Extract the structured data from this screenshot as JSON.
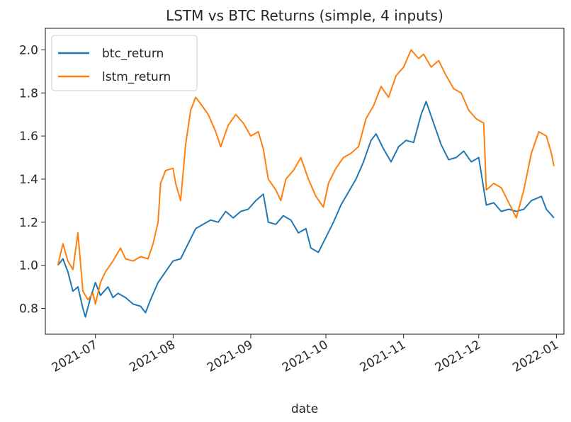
{
  "chart_data": {
    "type": "line",
    "title": "LSTM vs BTC Returns (simple, 4 inputs)",
    "xlabel": "date",
    "ylabel": "",
    "x_ticks": [
      "2021-07",
      "2021-08",
      "2021-09",
      "2021-10",
      "2021-11",
      "2021-12",
      "2022-01"
    ],
    "x_tick_dates": [
      "2021-07-01",
      "2021-08-01",
      "2021-09-01",
      "2021-10-01",
      "2021-11-01",
      "2021-12-01",
      "2022-01-01"
    ],
    "xlim": [
      "2021-06-11",
      "2022-01-04"
    ],
    "y_ticks": [
      "0.8",
      "1.0",
      "1.2",
      "1.4",
      "1.6",
      "1.8",
      "2.0"
    ],
    "ylim": [
      0.68,
      2.1
    ],
    "grid": false,
    "legend_position": "top-left",
    "series": [
      {
        "name": "btc_return",
        "color": "#1f77b4",
        "points": [
          [
            "2021-06-16",
            1.0
          ],
          [
            "2021-06-18",
            1.03
          ],
          [
            "2021-06-20",
            0.97
          ],
          [
            "2021-06-22",
            0.88
          ],
          [
            "2021-06-24",
            0.9
          ],
          [
            "2021-06-26",
            0.8
          ],
          [
            "2021-06-27",
            0.76
          ],
          [
            "2021-06-29",
            0.85
          ],
          [
            "2021-07-01",
            0.92
          ],
          [
            "2021-07-03",
            0.86
          ],
          [
            "2021-07-06",
            0.9
          ],
          [
            "2021-07-08",
            0.85
          ],
          [
            "2021-07-10",
            0.87
          ],
          [
            "2021-07-13",
            0.85
          ],
          [
            "2021-07-16",
            0.82
          ],
          [
            "2021-07-19",
            0.81
          ],
          [
            "2021-07-21",
            0.78
          ],
          [
            "2021-07-23",
            0.84
          ],
          [
            "2021-07-26",
            0.92
          ],
          [
            "2021-07-29",
            0.97
          ],
          [
            "2021-08-01",
            1.02
          ],
          [
            "2021-08-04",
            1.03
          ],
          [
            "2021-08-07",
            1.1
          ],
          [
            "2021-08-10",
            1.17
          ],
          [
            "2021-08-13",
            1.19
          ],
          [
            "2021-08-16",
            1.21
          ],
          [
            "2021-08-19",
            1.2
          ],
          [
            "2021-08-22",
            1.25
          ],
          [
            "2021-08-25",
            1.22
          ],
          [
            "2021-08-28",
            1.25
          ],
          [
            "2021-08-31",
            1.26
          ],
          [
            "2021-09-03",
            1.3
          ],
          [
            "2021-09-06",
            1.33
          ],
          [
            "2021-09-08",
            1.2
          ],
          [
            "2021-09-11",
            1.19
          ],
          [
            "2021-09-14",
            1.23
          ],
          [
            "2021-09-17",
            1.21
          ],
          [
            "2021-09-20",
            1.15
          ],
          [
            "2021-09-23",
            1.17
          ],
          [
            "2021-09-25",
            1.08
          ],
          [
            "2021-09-28",
            1.06
          ],
          [
            "2021-10-01",
            1.13
          ],
          [
            "2021-10-04",
            1.2
          ],
          [
            "2021-10-07",
            1.28
          ],
          [
            "2021-10-10",
            1.34
          ],
          [
            "2021-10-13",
            1.4
          ],
          [
            "2021-10-16",
            1.48
          ],
          [
            "2021-10-19",
            1.58
          ],
          [
            "2021-10-21",
            1.61
          ],
          [
            "2021-10-24",
            1.54
          ],
          [
            "2021-10-27",
            1.48
          ],
          [
            "2021-10-30",
            1.55
          ],
          [
            "2021-11-02",
            1.58
          ],
          [
            "2021-11-05",
            1.57
          ],
          [
            "2021-11-08",
            1.7
          ],
          [
            "2021-11-10",
            1.76
          ],
          [
            "2021-11-13",
            1.66
          ],
          [
            "2021-11-16",
            1.56
          ],
          [
            "2021-11-19",
            1.49
          ],
          [
            "2021-11-22",
            1.5
          ],
          [
            "2021-11-25",
            1.53
          ],
          [
            "2021-11-28",
            1.48
          ],
          [
            "2021-12-01",
            1.5
          ],
          [
            "2021-12-04",
            1.28
          ],
          [
            "2021-12-07",
            1.29
          ],
          [
            "2021-12-10",
            1.25
          ],
          [
            "2021-12-13",
            1.26
          ],
          [
            "2021-12-16",
            1.25
          ],
          [
            "2021-12-19",
            1.26
          ],
          [
            "2021-12-22",
            1.3
          ],
          [
            "2021-12-26",
            1.32
          ],
          [
            "2021-12-28",
            1.26
          ],
          [
            "2021-12-31",
            1.22
          ]
        ]
      },
      {
        "name": "lstm_return",
        "color": "#ff7f0e",
        "points": [
          [
            "2021-06-16",
            1.0
          ],
          [
            "2021-06-18",
            1.1
          ],
          [
            "2021-06-20",
            1.02
          ],
          [
            "2021-06-22",
            0.98
          ],
          [
            "2021-06-24",
            1.15
          ],
          [
            "2021-06-26",
            0.88
          ],
          [
            "2021-06-28",
            0.84
          ],
          [
            "2021-06-30",
            0.87
          ],
          [
            "2021-07-01",
            0.82
          ],
          [
            "2021-07-03",
            0.92
          ],
          [
            "2021-07-05",
            0.97
          ],
          [
            "2021-07-08",
            1.02
          ],
          [
            "2021-07-11",
            1.08
          ],
          [
            "2021-07-13",
            1.03
          ],
          [
            "2021-07-16",
            1.02
          ],
          [
            "2021-07-19",
            1.04
          ],
          [
            "2021-07-22",
            1.03
          ],
          [
            "2021-07-24",
            1.1
          ],
          [
            "2021-07-26",
            1.2
          ],
          [
            "2021-07-27",
            1.38
          ],
          [
            "2021-07-29",
            1.44
          ],
          [
            "2021-08-01",
            1.45
          ],
          [
            "2021-08-02",
            1.38
          ],
          [
            "2021-08-04",
            1.3
          ],
          [
            "2021-08-06",
            1.56
          ],
          [
            "2021-08-08",
            1.72
          ],
          [
            "2021-08-10",
            1.78
          ],
          [
            "2021-08-12",
            1.75
          ],
          [
            "2021-08-15",
            1.7
          ],
          [
            "2021-08-18",
            1.62
          ],
          [
            "2021-08-20",
            1.55
          ],
          [
            "2021-08-23",
            1.65
          ],
          [
            "2021-08-26",
            1.7
          ],
          [
            "2021-08-29",
            1.66
          ],
          [
            "2021-09-01",
            1.6
          ],
          [
            "2021-09-04",
            1.62
          ],
          [
            "2021-09-06",
            1.54
          ],
          [
            "2021-09-08",
            1.4
          ],
          [
            "2021-09-11",
            1.35
          ],
          [
            "2021-09-13",
            1.3
          ],
          [
            "2021-09-15",
            1.4
          ],
          [
            "2021-09-18",
            1.44
          ],
          [
            "2021-09-21",
            1.5
          ],
          [
            "2021-09-24",
            1.4
          ],
          [
            "2021-09-27",
            1.32
          ],
          [
            "2021-09-30",
            1.27
          ],
          [
            "2021-10-02",
            1.38
          ],
          [
            "2021-10-05",
            1.45
          ],
          [
            "2021-10-08",
            1.5
          ],
          [
            "2021-10-11",
            1.52
          ],
          [
            "2021-10-14",
            1.55
          ],
          [
            "2021-10-17",
            1.68
          ],
          [
            "2021-10-20",
            1.74
          ],
          [
            "2021-10-23",
            1.83
          ],
          [
            "2021-10-26",
            1.78
          ],
          [
            "2021-10-29",
            1.88
          ],
          [
            "2021-11-01",
            1.92
          ],
          [
            "2021-11-04",
            2.0
          ],
          [
            "2021-11-07",
            1.96
          ],
          [
            "2021-11-09",
            1.98
          ],
          [
            "2021-11-12",
            1.92
          ],
          [
            "2021-11-15",
            1.95
          ],
          [
            "2021-11-18",
            1.88
          ],
          [
            "2021-11-21",
            1.82
          ],
          [
            "2021-11-24",
            1.8
          ],
          [
            "2021-11-27",
            1.72
          ],
          [
            "2021-11-30",
            1.68
          ],
          [
            "2021-12-03",
            1.66
          ],
          [
            "2021-12-04",
            1.35
          ],
          [
            "2021-12-07",
            1.38
          ],
          [
            "2021-12-10",
            1.36
          ],
          [
            "2021-12-13",
            1.29
          ],
          [
            "2021-12-16",
            1.22
          ],
          [
            "2021-12-19",
            1.35
          ],
          [
            "2021-12-22",
            1.52
          ],
          [
            "2021-12-25",
            1.62
          ],
          [
            "2021-12-28",
            1.6
          ],
          [
            "2021-12-30",
            1.52
          ],
          [
            "2021-12-31",
            1.46
          ]
        ]
      }
    ]
  }
}
